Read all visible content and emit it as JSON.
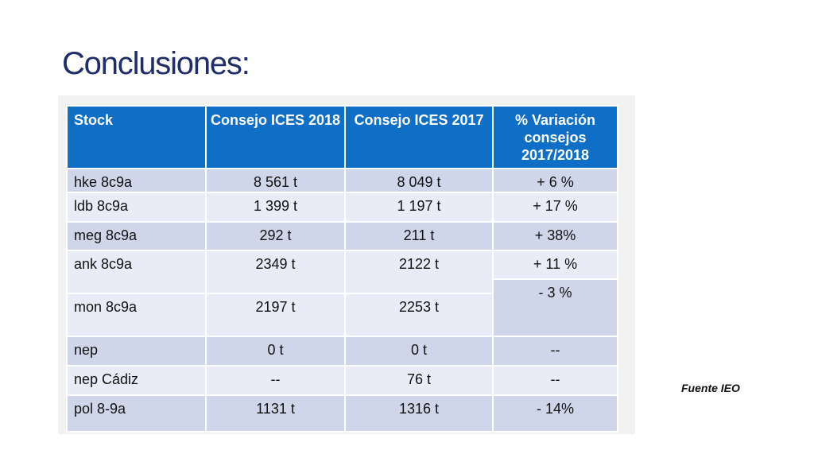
{
  "slide": {
    "title": "Conclusiones:",
    "source": "Fuente IEO"
  },
  "table": {
    "headers": [
      "Stock",
      "Consejo ICES 2018",
      "Consejo ICES 2017",
      "% Variación consejos 2017/2018"
    ],
    "rows": [
      {
        "stock": "hke 8c9a",
        "c2018": "8 561 t",
        "c2017": "8 049 t",
        "variation": "+ 6 %"
      },
      {
        "stock": "ldb 8c9a",
        "c2018": "1 399 t",
        "c2017": "1 197 t",
        "variation": "+ 17 %"
      },
      {
        "stock": "meg 8c9a",
        "c2018": "292 t",
        "c2017": "211 t",
        "variation": "+ 38%"
      },
      {
        "stock": "ank 8c9a",
        "c2018": "2349 t",
        "c2017": "2122 t",
        "variation": "+ 11 %"
      },
      {
        "stock": "mon 8c9a",
        "c2018": "2197 t",
        "c2017": "2253 t",
        "variation": "- 3 %"
      },
      {
        "stock": "nep",
        "c2018": "0 t",
        "c2017": "0 t",
        "variation": "--"
      },
      {
        "stock": "nep Cádiz",
        "c2018": "--",
        "c2017": "76 t",
        "variation": "--"
      },
      {
        "stock": "pol 8-9a",
        "c2018": "1131 t",
        "c2017": "1316 t",
        "variation": "- 14%"
      }
    ]
  }
}
